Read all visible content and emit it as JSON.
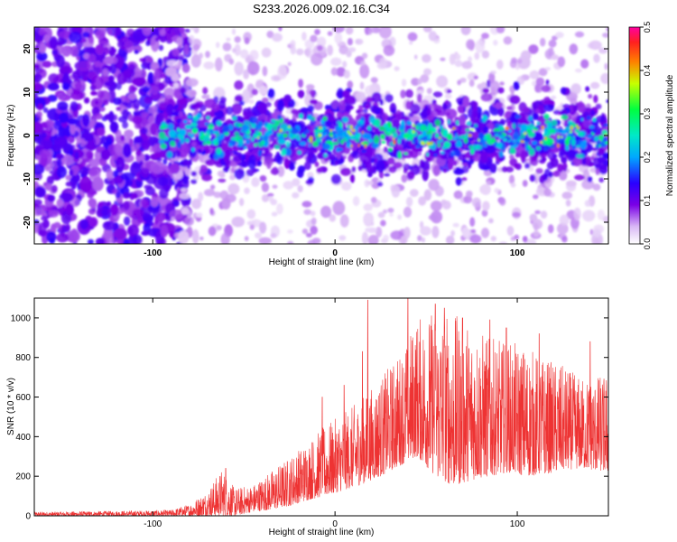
{
  "title": "S233.2026.009.02.16.C34",
  "chart_data": [
    {
      "type": "heatmap",
      "xlabel": "Height of straight line (km)",
      "ylabel": "Frequency (Hz)",
      "xlim": [
        -165,
        150
      ],
      "ylim": [
        -25,
        25
      ],
      "x_ticks": [
        -100,
        0,
        100
      ],
      "y_ticks": [
        -20,
        -10,
        0,
        10,
        20
      ],
      "colorbar": {
        "label": "Normalized spectral amplitude",
        "range": [
          0.0,
          0.5
        ],
        "ticks": [
          0.0,
          0.1,
          0.2,
          0.3,
          0.4,
          0.5
        ],
        "tick_labels": [
          "0.0",
          "0.1",
          "0.2",
          "0.3",
          "0.4",
          "0.5"
        ]
      },
      "grid": false
    },
    {
      "type": "line",
      "xlabel": "Height of straight line (km)",
      "ylabel": "SNR (10 * v/v)",
      "xlim": [
        -165,
        150
      ],
      "ylim": [
        0,
        1100
      ],
      "x_ticks": [
        -100,
        0,
        100
      ],
      "y_ticks": [
        0,
        200,
        400,
        600,
        800,
        1000
      ],
      "series": [
        {
          "color": "#ee3333",
          "envelope": {
            "x": [
              -165,
              -120,
              -90,
              -80,
              -70,
              -62,
              -55,
              -45,
              -35,
              -25,
              -15,
              -5,
              5,
              15,
              25,
              35,
              45,
              55,
              65,
              75,
              85,
              95,
              105,
              115,
              125,
              135,
              150
            ],
            "upper": [
              20,
              25,
              30,
              60,
              130,
              240,
              140,
              160,
              230,
              300,
              380,
              460,
              520,
              600,
              700,
              820,
              1000,
              1050,
              1020,
              980,
              900,
              880,
              860,
              800,
              760,
              700,
              720
            ],
            "lower": [
              0,
              0,
              0,
              0,
              0,
              0,
              0,
              20,
              30,
              50,
              80,
              100,
              130,
              160,
              200,
              250,
              300,
              200,
              150,
              180,
              200,
              220,
              200,
              210,
              230,
              240,
              220
            ]
          },
          "peaks": [
            [
              -60,
              240
            ],
            [
              -7,
              600
            ],
            [
              5,
              660
            ],
            [
              15,
              830
            ],
            [
              18,
              1090
            ],
            [
              40,
              1100
            ],
            [
              55,
              1070
            ],
            [
              60,
              1050
            ],
            [
              70,
              1000
            ],
            [
              85,
              990
            ],
            [
              94,
              950
            ],
            [
              112,
              920
            ],
            [
              140,
              880
            ]
          ]
        }
      ],
      "grid": false
    }
  ]
}
